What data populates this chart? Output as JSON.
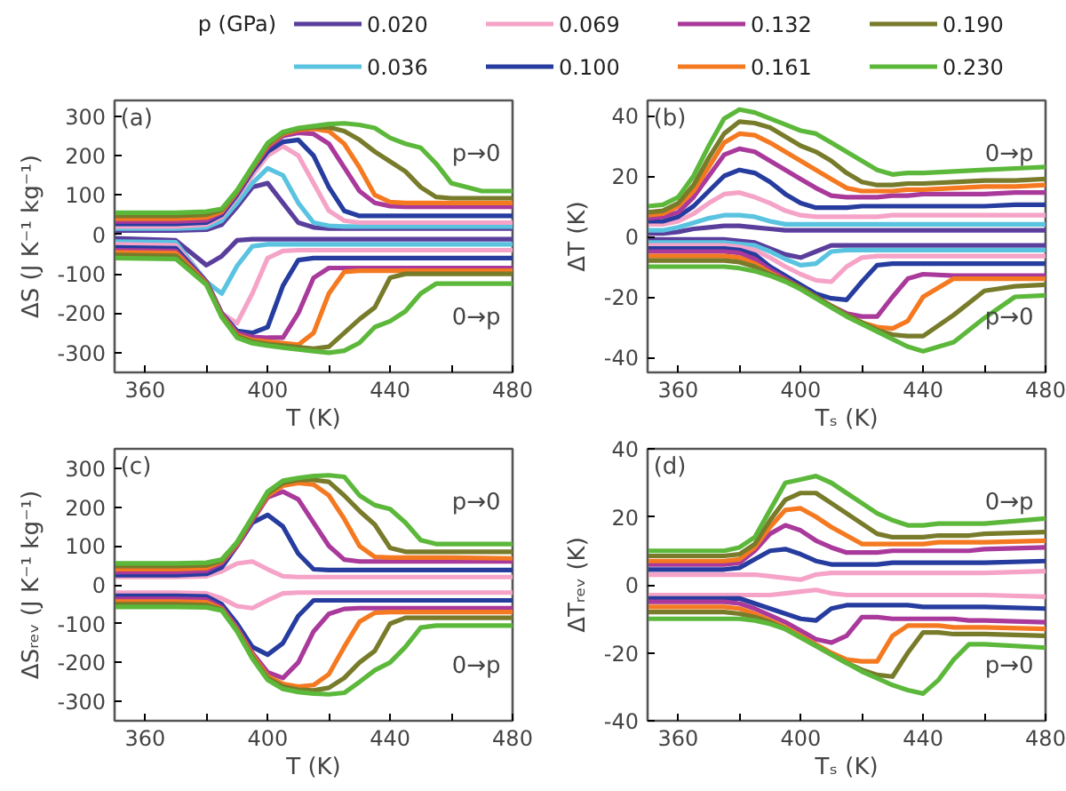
{
  "chart_data": [
    {
      "type": "line",
      "xlabel": "T (K)",
      "ylabel": "ΔS (J K⁻¹ kg⁻¹)",
      "legend": "top",
      "legend_title": "p (GPa)",
      "xlim": [
        350,
        480
      ],
      "ylim": [
        -350,
        340
      ],
      "xticks": [
        360,
        {
          "value": 380,
          "label": null
        },
        400,
        {
          "value": 420,
          "label": null
        },
        440,
        {
          "value": 460,
          "label": null
        },
        480
      ],
      "yticks": [
        -300,
        -200,
        -100,
        0,
        100,
        200,
        300
      ],
      "annotations": [
        "(a)",
        "p→0",
        "0→p"
      ],
      "x": [
        350,
        370,
        380,
        385,
        390,
        395,
        400,
        405,
        410,
        415,
        420,
        425,
        430,
        435,
        440,
        445,
        450,
        455,
        460,
        470,
        480
      ],
      "series": [
        {
          "name": "0.020",
          "color": "#5a3e9c",
          "values": [
            10,
            10,
            12,
            25,
            70,
            120,
            130,
            80,
            30,
            18,
            15,
            15,
            15,
            15,
            15,
            15,
            15,
            15,
            15,
            15,
            15
          ]
        },
        {
          "name": "0.036",
          "color": "#59c3e0",
          "values": [
            15,
            15,
            18,
            35,
            80,
            130,
            168,
            150,
            80,
            30,
            22,
            20,
            20,
            20,
            20,
            20,
            20,
            20,
            20,
            20,
            20
          ]
        },
        {
          "name": "0.069",
          "color": "#f5a3c7",
          "values": [
            20,
            20,
            25,
            45,
            95,
            150,
            200,
            224,
            200,
            130,
            60,
            35,
            30,
            30,
            30,
            30,
            30,
            30,
            30,
            30,
            30
          ]
        },
        {
          "name": "0.100",
          "color": "#263c9e",
          "values": [
            27,
            27,
            30,
            50,
            100,
            160,
            210,
            235,
            240,
            200,
            120,
            60,
            47,
            47,
            47,
            47,
            47,
            47,
            47,
            47,
            47
          ]
        },
        {
          "name": "0.132",
          "color": "#a9399b",
          "values": [
            33,
            33,
            36,
            55,
            105,
            165,
            220,
            250,
            258,
            255,
            230,
            170,
            110,
            80,
            72,
            70,
            70,
            70,
            70,
            70,
            70
          ]
        },
        {
          "name": "0.161",
          "color": "#f47920",
          "values": [
            40,
            40,
            43,
            58,
            108,
            168,
            225,
            255,
            265,
            268,
            262,
            230,
            170,
            100,
            82,
            80,
            80,
            80,
            80,
            80,
            80
          ]
        },
        {
          "name": "0.190",
          "color": "#777b2a",
          "values": [
            47,
            47,
            50,
            62,
            110,
            170,
            228,
            258,
            268,
            272,
            272,
            262,
            240,
            210,
            185,
            160,
            120,
            95,
            92,
            92,
            92
          ]
        },
        {
          "name": "0.230",
          "color": "#5cb83a",
          "values": [
            55,
            55,
            58,
            65,
            112,
            172,
            232,
            260,
            270,
            275,
            280,
            282,
            278,
            270,
            245,
            230,
            220,
            180,
            130,
            110,
            110
          ]
        },
        {
          "color": "#5a3e9c",
          "values": [
            -10,
            -15,
            -78,
            -55,
            -15,
            -12,
            -12,
            -12,
            -12,
            -12,
            -12,
            -12,
            -12,
            -12,
            -12,
            -12,
            -12,
            -12,
            -12,
            -12,
            -12
          ]
        },
        {
          "color": "#59c3e0",
          "values": [
            -18,
            -20,
            -120,
            -150,
            -80,
            -30,
            -25,
            -25,
            -25,
            -25,
            -25,
            -25,
            -25,
            -25,
            -25,
            -25,
            -25,
            -25,
            -25,
            -25,
            -25
          ]
        },
        {
          "color": "#f5a3c7",
          "values": [
            -25,
            -28,
            -120,
            -200,
            -225,
            -150,
            -60,
            -42,
            -40,
            -40,
            -40,
            -40,
            -40,
            -40,
            -40,
            -40,
            -40,
            -40,
            -40,
            -40,
            -40
          ]
        },
        {
          "color": "#263c9e",
          "values": [
            -33,
            -35,
            -120,
            -200,
            -245,
            -250,
            -235,
            -130,
            -65,
            -60,
            -60,
            -60,
            -60,
            -60,
            -60,
            -60,
            -60,
            -60,
            -60,
            -60,
            -60
          ]
        },
        {
          "color": "#a9399b",
          "values": [
            -40,
            -42,
            -122,
            -202,
            -250,
            -260,
            -262,
            -262,
            -200,
            -110,
            -85,
            -85,
            -85,
            -85,
            -85,
            -85,
            -85,
            -85,
            -85,
            -85,
            -85
          ]
        },
        {
          "color": "#f47920",
          "values": [
            -45,
            -47,
            -124,
            -205,
            -255,
            -268,
            -272,
            -276,
            -280,
            -250,
            -150,
            -95,
            -92,
            -92,
            -92,
            -92,
            -92,
            -92,
            -92,
            -92,
            -92
          ]
        },
        {
          "color": "#777b2a",
          "values": [
            -52,
            -54,
            -126,
            -207,
            -258,
            -272,
            -278,
            -282,
            -286,
            -290,
            -285,
            -250,
            -215,
            -185,
            -110,
            -100,
            -100,
            -100,
            -100,
            -100,
            -100
          ]
        },
        {
          "color": "#5cb83a",
          "values": [
            -60,
            -62,
            -128,
            -210,
            -262,
            -276,
            -282,
            -287,
            -292,
            -296,
            -300,
            -295,
            -275,
            -235,
            -220,
            -195,
            -150,
            -125,
            -125,
            -125,
            -125
          ]
        }
      ]
    },
    {
      "type": "line",
      "xlabel": "Tₛ (K)",
      "ylabel": "ΔT (K)",
      "xlim": [
        350,
        480
      ],
      "ylim": [
        -45,
        45
      ],
      "xticks": [
        360,
        {
          "value": 380,
          "label": null
        },
        400,
        {
          "value": 420,
          "label": null
        },
        440,
        {
          "value": 460,
          "label": null
        },
        480
      ],
      "yticks": [
        -40,
        -20,
        0,
        20,
        40
      ],
      "annotations": [
        "(b)",
        "0→p",
        "p→0"
      ],
      "x": [
        350,
        355,
        360,
        365,
        370,
        375,
        380,
        385,
        390,
        395,
        400,
        405,
        410,
        415,
        420,
        425,
        430,
        435,
        440,
        450,
        460,
        470,
        480
      ],
      "series": [
        {
          "name": "0.020",
          "color": "#5a3e9c",
          "values": [
            1,
            1,
            1.5,
            2.5,
            3,
            3.5,
            3.5,
            3,
            2.5,
            2,
            2,
            2,
            2,
            2,
            2,
            2,
            2,
            2,
            2,
            2,
            2,
            2,
            2
          ]
        },
        {
          "name": "0.036",
          "color": "#59c3e0",
          "values": [
            2,
            2,
            3,
            4.5,
            6,
            7,
            7,
            6.5,
            5,
            4,
            4,
            4,
            4,
            4,
            4,
            4,
            4,
            4,
            4,
            4,
            4,
            4,
            4
          ]
        },
        {
          "name": "0.069",
          "color": "#f5a3c7",
          "values": [
            4,
            4,
            5,
            7.5,
            11,
            14,
            14.5,
            13,
            11,
            8.5,
            7,
            6.5,
            6.5,
            6.5,
            6.5,
            6.5,
            7,
            7,
            7,
            7,
            7,
            7,
            7
          ]
        },
        {
          "name": "0.100",
          "color": "#263c9e",
          "values": [
            5,
            5,
            6.5,
            10,
            15,
            20,
            22,
            21,
            18,
            14,
            11,
            9.5,
            9.5,
            9.5,
            10,
            10,
            10,
            10,
            10,
            10,
            10,
            10.5,
            10.5
          ]
        },
        {
          "name": "0.132",
          "color": "#a9399b",
          "values": [
            6,
            6.5,
            8,
            13,
            20,
            27,
            29,
            28,
            25,
            22,
            19,
            16,
            13.5,
            13,
            13,
            13,
            13.5,
            13.5,
            14,
            14,
            14,
            14.5,
            14.5
          ]
        },
        {
          "name": "0.161",
          "color": "#f47920",
          "values": [
            7,
            7.5,
            10,
            15,
            23,
            31,
            34,
            33.5,
            31,
            28,
            25,
            22,
            19,
            16,
            15,
            15,
            15,
            15.5,
            15.5,
            16,
            16.5,
            16.5,
            17
          ]
        },
        {
          "name": "0.190",
          "color": "#777b2a",
          "values": [
            8,
            8.5,
            11,
            17,
            26,
            34,
            38,
            37.5,
            36,
            33,
            30,
            28,
            25,
            21,
            18,
            17,
            17,
            17.5,
            17.5,
            18,
            18.5,
            18.5,
            19
          ]
        },
        {
          "name": "0.230",
          "color": "#5cb83a",
          "values": [
            10,
            10.5,
            13,
            20,
            30,
            39,
            42,
            41,
            39,
            37,
            35,
            34,
            31,
            28,
            25,
            22,
            20.5,
            21,
            21,
            21.5,
            22,
            22.5,
            23
          ]
        },
        {
          "color": "#5a3e9c",
          "values": [
            -1,
            -1,
            -1,
            -1,
            -1,
            -1,
            -1.5,
            -2,
            -4,
            -6,
            -7,
            -5,
            -3,
            -3,
            -3,
            -3,
            -3,
            -3,
            -3,
            -3,
            -3,
            -3,
            -3
          ]
        },
        {
          "color": "#59c3e0",
          "values": [
            -2,
            -2,
            -2,
            -2,
            -2,
            -2,
            -2.5,
            -3,
            -5,
            -7.5,
            -9.5,
            -9,
            -5,
            -4.5,
            -4.5,
            -4.5,
            -4.5,
            -4.5,
            -4.5,
            -4.5,
            -4.5,
            -4.5,
            -4.5
          ]
        },
        {
          "color": "#f5a3c7",
          "values": [
            -3,
            -3,
            -3,
            -3,
            -3,
            -3,
            -3.5,
            -4.5,
            -7,
            -10,
            -12.5,
            -14.5,
            -15,
            -10,
            -7,
            -6.5,
            -6.5,
            -6.5,
            -6.5,
            -6.5,
            -6.5,
            -6.5,
            -6.5
          ]
        },
        {
          "color": "#263c9e",
          "values": [
            -4,
            -4,
            -4,
            -4,
            -4,
            -4,
            -4.5,
            -6,
            -10,
            -13,
            -16,
            -19,
            -20.5,
            -21,
            -15,
            -9.5,
            -9,
            -9,
            -9,
            -9,
            -9,
            -9,
            -9
          ]
        },
        {
          "color": "#a9399b",
          "values": [
            -5,
            -5,
            -5,
            -5,
            -5,
            -5,
            -5.5,
            -7.5,
            -11,
            -14,
            -17,
            -20,
            -23,
            -25.5,
            -26.5,
            -26.5,
            -20,
            -14,
            -12.5,
            -13,
            -13,
            -13,
            -13
          ]
        },
        {
          "color": "#f47920",
          "values": [
            -6.5,
            -6.5,
            -6.5,
            -6.5,
            -6.5,
            -6.5,
            -7,
            -9,
            -12,
            -14.5,
            -17,
            -20,
            -23,
            -26,
            -28.5,
            -30,
            -30.5,
            -28,
            -20,
            -14,
            -14,
            -14,
            -14
          ]
        },
        {
          "color": "#777b2a",
          "values": [
            -8,
            -8,
            -8,
            -8,
            -8,
            -8,
            -8.5,
            -10,
            -12.5,
            -14.5,
            -17,
            -20,
            -23,
            -26,
            -28.5,
            -31,
            -32.5,
            -33,
            -33,
            -26,
            -18,
            -16.5,
            -16
          ]
        },
        {
          "color": "#5cb83a",
          "values": [
            -10,
            -10,
            -10,
            -10,
            -10,
            -10,
            -10.5,
            -11.5,
            -13,
            -15,
            -17.5,
            -20.5,
            -23.5,
            -26.5,
            -29,
            -31.5,
            -34,
            -36.5,
            -38,
            -35,
            -27,
            -20,
            -19.5
          ]
        }
      ]
    },
    {
      "type": "line",
      "xlabel": "T (K)",
      "ylabel": "ΔSᵣₑᵥ (J K⁻¹ kg⁻¹)",
      "xlim": [
        350,
        480
      ],
      "ylim": [
        -350,
        350
      ],
      "xticks": [
        360,
        {
          "value": 380,
          "label": null
        },
        400,
        {
          "value": 420,
          "label": null
        },
        440,
        {
          "value": 460,
          "label": null
        },
        480
      ],
      "yticks": [
        -300,
        -200,
        -100,
        0,
        100,
        200,
        300
      ],
      "annotations": [
        "(c)",
        "p→0",
        "0→p"
      ],
      "x": [
        350,
        370,
        380,
        385,
        390,
        395,
        400,
        405,
        410,
        415,
        420,
        425,
        430,
        435,
        440,
        445,
        450,
        455,
        460,
        480
      ],
      "series": [
        {
          "name": "0.069",
          "color": "#f5a3c7",
          "values": [
            20,
            20,
            22,
            35,
            55,
            60,
            40,
            22,
            20,
            20,
            20,
            20,
            20,
            20,
            20,
            20,
            20,
            20,
            20,
            20
          ]
        },
        {
          "name": "0.100",
          "color": "#263c9e",
          "values": [
            25,
            25,
            28,
            45,
            100,
            160,
            180,
            150,
            80,
            40,
            38,
            38,
            38,
            38,
            38,
            38,
            38,
            38,
            38,
            38
          ]
        },
        {
          "name": "0.132",
          "color": "#a9399b",
          "values": [
            33,
            33,
            36,
            55,
            100,
            165,
            225,
            240,
            220,
            160,
            100,
            65,
            60,
            60,
            60,
            60,
            60,
            60,
            60,
            60
          ]
        },
        {
          "name": "0.161",
          "color": "#f47920",
          "values": [
            40,
            40,
            43,
            60,
            105,
            170,
            230,
            255,
            262,
            258,
            230,
            170,
            100,
            72,
            70,
            70,
            70,
            70,
            70,
            68
          ]
        },
        {
          "name": "0.190",
          "color": "#777b2a",
          "values": [
            48,
            48,
            50,
            62,
            108,
            172,
            235,
            262,
            270,
            270,
            265,
            230,
            190,
            155,
            95,
            85,
            85,
            85,
            85,
            85
          ]
        },
        {
          "name": "0.230",
          "color": "#5cb83a",
          "values": [
            55,
            55,
            57,
            65,
            110,
            175,
            240,
            268,
            275,
            280,
            282,
            278,
            230,
            205,
            195,
            160,
            115,
            105,
            105,
            105
          ]
        },
        {
          "color": "#f5a3c7",
          "values": [
            -20,
            -20,
            -22,
            -35,
            -55,
            -60,
            -40,
            -22,
            -20,
            -20,
            -20,
            -20,
            -20,
            -20,
            -20,
            -20,
            -20,
            -20,
            -20,
            -20
          ]
        },
        {
          "color": "#263c9e",
          "values": [
            -28,
            -28,
            -30,
            -50,
            -100,
            -160,
            -180,
            -150,
            -80,
            -40,
            -40,
            -40,
            -40,
            -40,
            -40,
            -40,
            -40,
            -40,
            -40,
            -40
          ]
        },
        {
          "color": "#a9399b",
          "values": [
            -36,
            -36,
            -38,
            -58,
            -110,
            -175,
            -225,
            -240,
            -200,
            -120,
            -75,
            -62,
            -60,
            -60,
            -60,
            -60,
            -60,
            -60,
            -60,
            -60
          ]
        },
        {
          "color": "#f47920",
          "values": [
            -43,
            -43,
            -45,
            -62,
            -115,
            -180,
            -235,
            -255,
            -262,
            -258,
            -230,
            -160,
            -95,
            -72,
            -70,
            -70,
            -70,
            -70,
            -70,
            -70
          ]
        },
        {
          "color": "#777b2a",
          "values": [
            -50,
            -50,
            -52,
            -64,
            -118,
            -185,
            -240,
            -262,
            -270,
            -272,
            -265,
            -240,
            -200,
            -170,
            -100,
            -85,
            -85,
            -85,
            -85,
            -85
          ]
        },
        {
          "color": "#5cb83a",
          "values": [
            -57,
            -57,
            -58,
            -66,
            -120,
            -190,
            -245,
            -268,
            -276,
            -280,
            -282,
            -278,
            -250,
            -220,
            -200,
            -160,
            -110,
            -105,
            -105,
            -105
          ]
        }
      ]
    },
    {
      "type": "line",
      "xlabel": "Tₛ (K)",
      "ylabel": "ΔTᵣₑᵥ (K)",
      "xlim": [
        350,
        480
      ],
      "ylim": [
        -40,
        40
      ],
      "xticks": [
        360,
        {
          "value": 380,
          "label": null
        },
        400,
        {
          "value": 420,
          "label": null
        },
        440,
        {
          "value": 460,
          "label": null
        },
        480
      ],
      "yticks": [
        -40,
        -20,
        0,
        20,
        40
      ],
      "annotations": [
        "(d)",
        "0→p",
        "p→0"
      ],
      "x": [
        350,
        370,
        375,
        380,
        385,
        390,
        395,
        400,
        405,
        410,
        415,
        420,
        425,
        430,
        435,
        440,
        445,
        450,
        455,
        460,
        480
      ],
      "series": [
        {
          "name": "0.069",
          "color": "#f5a3c7",
          "values": [
            3,
            3,
            3,
            3,
            3,
            2.5,
            2,
            1.5,
            3,
            3.5,
            3.5,
            3.5,
            3.5,
            3.5,
            3.5,
            3.5,
            3.5,
            3.5,
            3.5,
            3.5,
            4
          ]
        },
        {
          "name": "0.100",
          "color": "#263c9e",
          "values": [
            4.5,
            4.5,
            4.5,
            5,
            7.5,
            10,
            10.5,
            9,
            7,
            6,
            6,
            6,
            6,
            6.5,
            6.5,
            6.5,
            6.5,
            6.5,
            6.5,
            6.5,
            7
          ]
        },
        {
          "name": "0.132",
          "color": "#a9399b",
          "values": [
            6,
            6,
            6,
            6.5,
            10,
            15,
            17.5,
            16,
            13,
            11,
            9.5,
            9.5,
            9.5,
            10,
            10,
            10,
            10,
            10,
            10,
            10.5,
            11
          ]
        },
        {
          "name": "0.161",
          "color": "#f47920",
          "values": [
            7,
            7,
            7,
            7.5,
            11,
            17,
            22,
            22.5,
            20,
            17,
            14.5,
            12,
            12,
            12,
            12,
            12,
            12.5,
            12.5,
            12.5,
            12.5,
            13
          ]
        },
        {
          "name": "0.190",
          "color": "#777b2a",
          "values": [
            8.5,
            8.5,
            8.5,
            9,
            12,
            19,
            25,
            27,
            27,
            24,
            21,
            18,
            15,
            14,
            14,
            14,
            14.5,
            14.5,
            14.5,
            15,
            15.5
          ]
        },
        {
          "name": "0.230",
          "color": "#5cb83a",
          "values": [
            10,
            10,
            10,
            11,
            14,
            22,
            30,
            31,
            32,
            30,
            27,
            24,
            21,
            19,
            17.5,
            17.5,
            18,
            18,
            18,
            18,
            19.5
          ]
        },
        {
          "color": "#f5a3c7",
          "values": [
            -3,
            -3,
            -3,
            -3,
            -3,
            -3,
            -2.5,
            -2,
            -1.5,
            -2.5,
            -3,
            -3,
            -3,
            -3,
            -3,
            -3,
            -3,
            -3,
            -3,
            -3,
            -3.5
          ]
        },
        {
          "color": "#263c9e",
          "values": [
            -4,
            -4,
            -4,
            -4,
            -5.5,
            -7,
            -8.5,
            -10,
            -10.5,
            -7,
            -6,
            -6,
            -6,
            -6,
            -6,
            -6.5,
            -6.5,
            -6.5,
            -6.5,
            -6.5,
            -7
          ]
        },
        {
          "color": "#a9399b",
          "values": [
            -5,
            -5,
            -5,
            -5.5,
            -7,
            -9,
            -11,
            -13.5,
            -16,
            -17,
            -15,
            -9.5,
            -9.5,
            -10,
            -10,
            -10,
            -10,
            -10,
            -10.5,
            -10.5,
            -11
          ]
        },
        {
          "color": "#f47920",
          "values": [
            -6.5,
            -6.5,
            -6.5,
            -7,
            -8.5,
            -10.5,
            -12.5,
            -15,
            -17.5,
            -20,
            -22,
            -22.5,
            -22.5,
            -15,
            -12,
            -12,
            -12,
            -12.5,
            -12.5,
            -12.5,
            -13
          ]
        },
        {
          "color": "#777b2a",
          "values": [
            -8,
            -8,
            -8,
            -8.5,
            -9.5,
            -11,
            -13,
            -15.5,
            -18,
            -20.5,
            -23,
            -25,
            -26.5,
            -27,
            -20,
            -14,
            -14,
            -14.5,
            -14.5,
            -14.5,
            -15
          ]
        },
        {
          "color": "#5cb83a",
          "values": [
            -10,
            -10,
            -10,
            -10,
            -10.5,
            -11.5,
            -13,
            -15.5,
            -18,
            -20.5,
            -23,
            -25.5,
            -27.5,
            -29.5,
            -31,
            -32,
            -28,
            -22,
            -17.5,
            -17.5,
            -18.5
          ]
        }
      ]
    }
  ]
}
